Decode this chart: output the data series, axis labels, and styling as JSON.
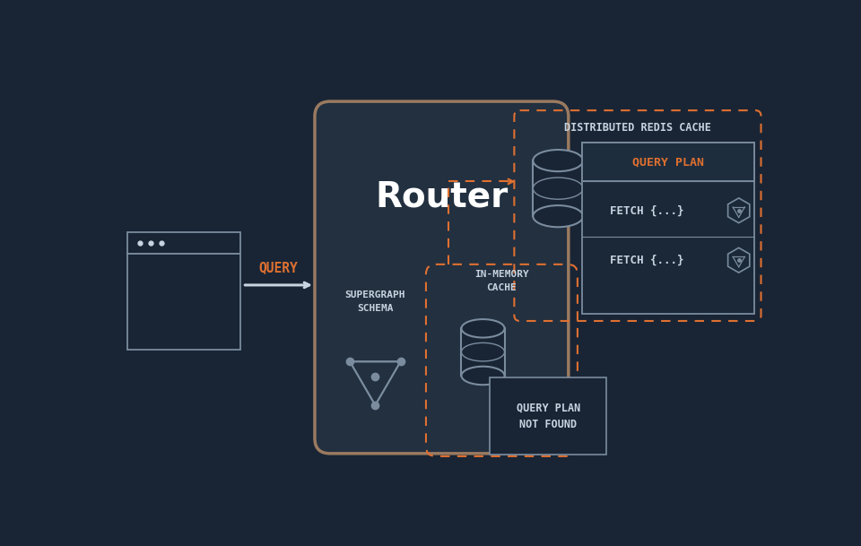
{
  "bg_color": "#192535",
  "colors": {
    "orange": "#e07030",
    "white": "#ffffff",
    "light_gray": "#c8d4e0",
    "mid_gray": "#7a8c9e",
    "dark_panel": "#1e2d3d",
    "router_bg": "#223040",
    "router_edge": "#9a7a60",
    "browser_edge": "#7a8c9e",
    "panel_bg": "#192535",
    "inner_panel": "#1a2838"
  },
  "title_router": "Router",
  "label_supergraph": "SUPERGRAPH\nSCHEMA",
  "label_inmemory": "IN-MEMORY\nCACHE",
  "label_redis": "DISTRIBUTED REDIS CACHE",
  "label_query": "QUERY",
  "label_fetch1": "FETCH {...}",
  "label_fetch2": "FETCH {...}",
  "label_query_plan_orange": "QUERY PLAN",
  "label_qplan_notfound": "QUERY PLAN\nNOT FOUND"
}
